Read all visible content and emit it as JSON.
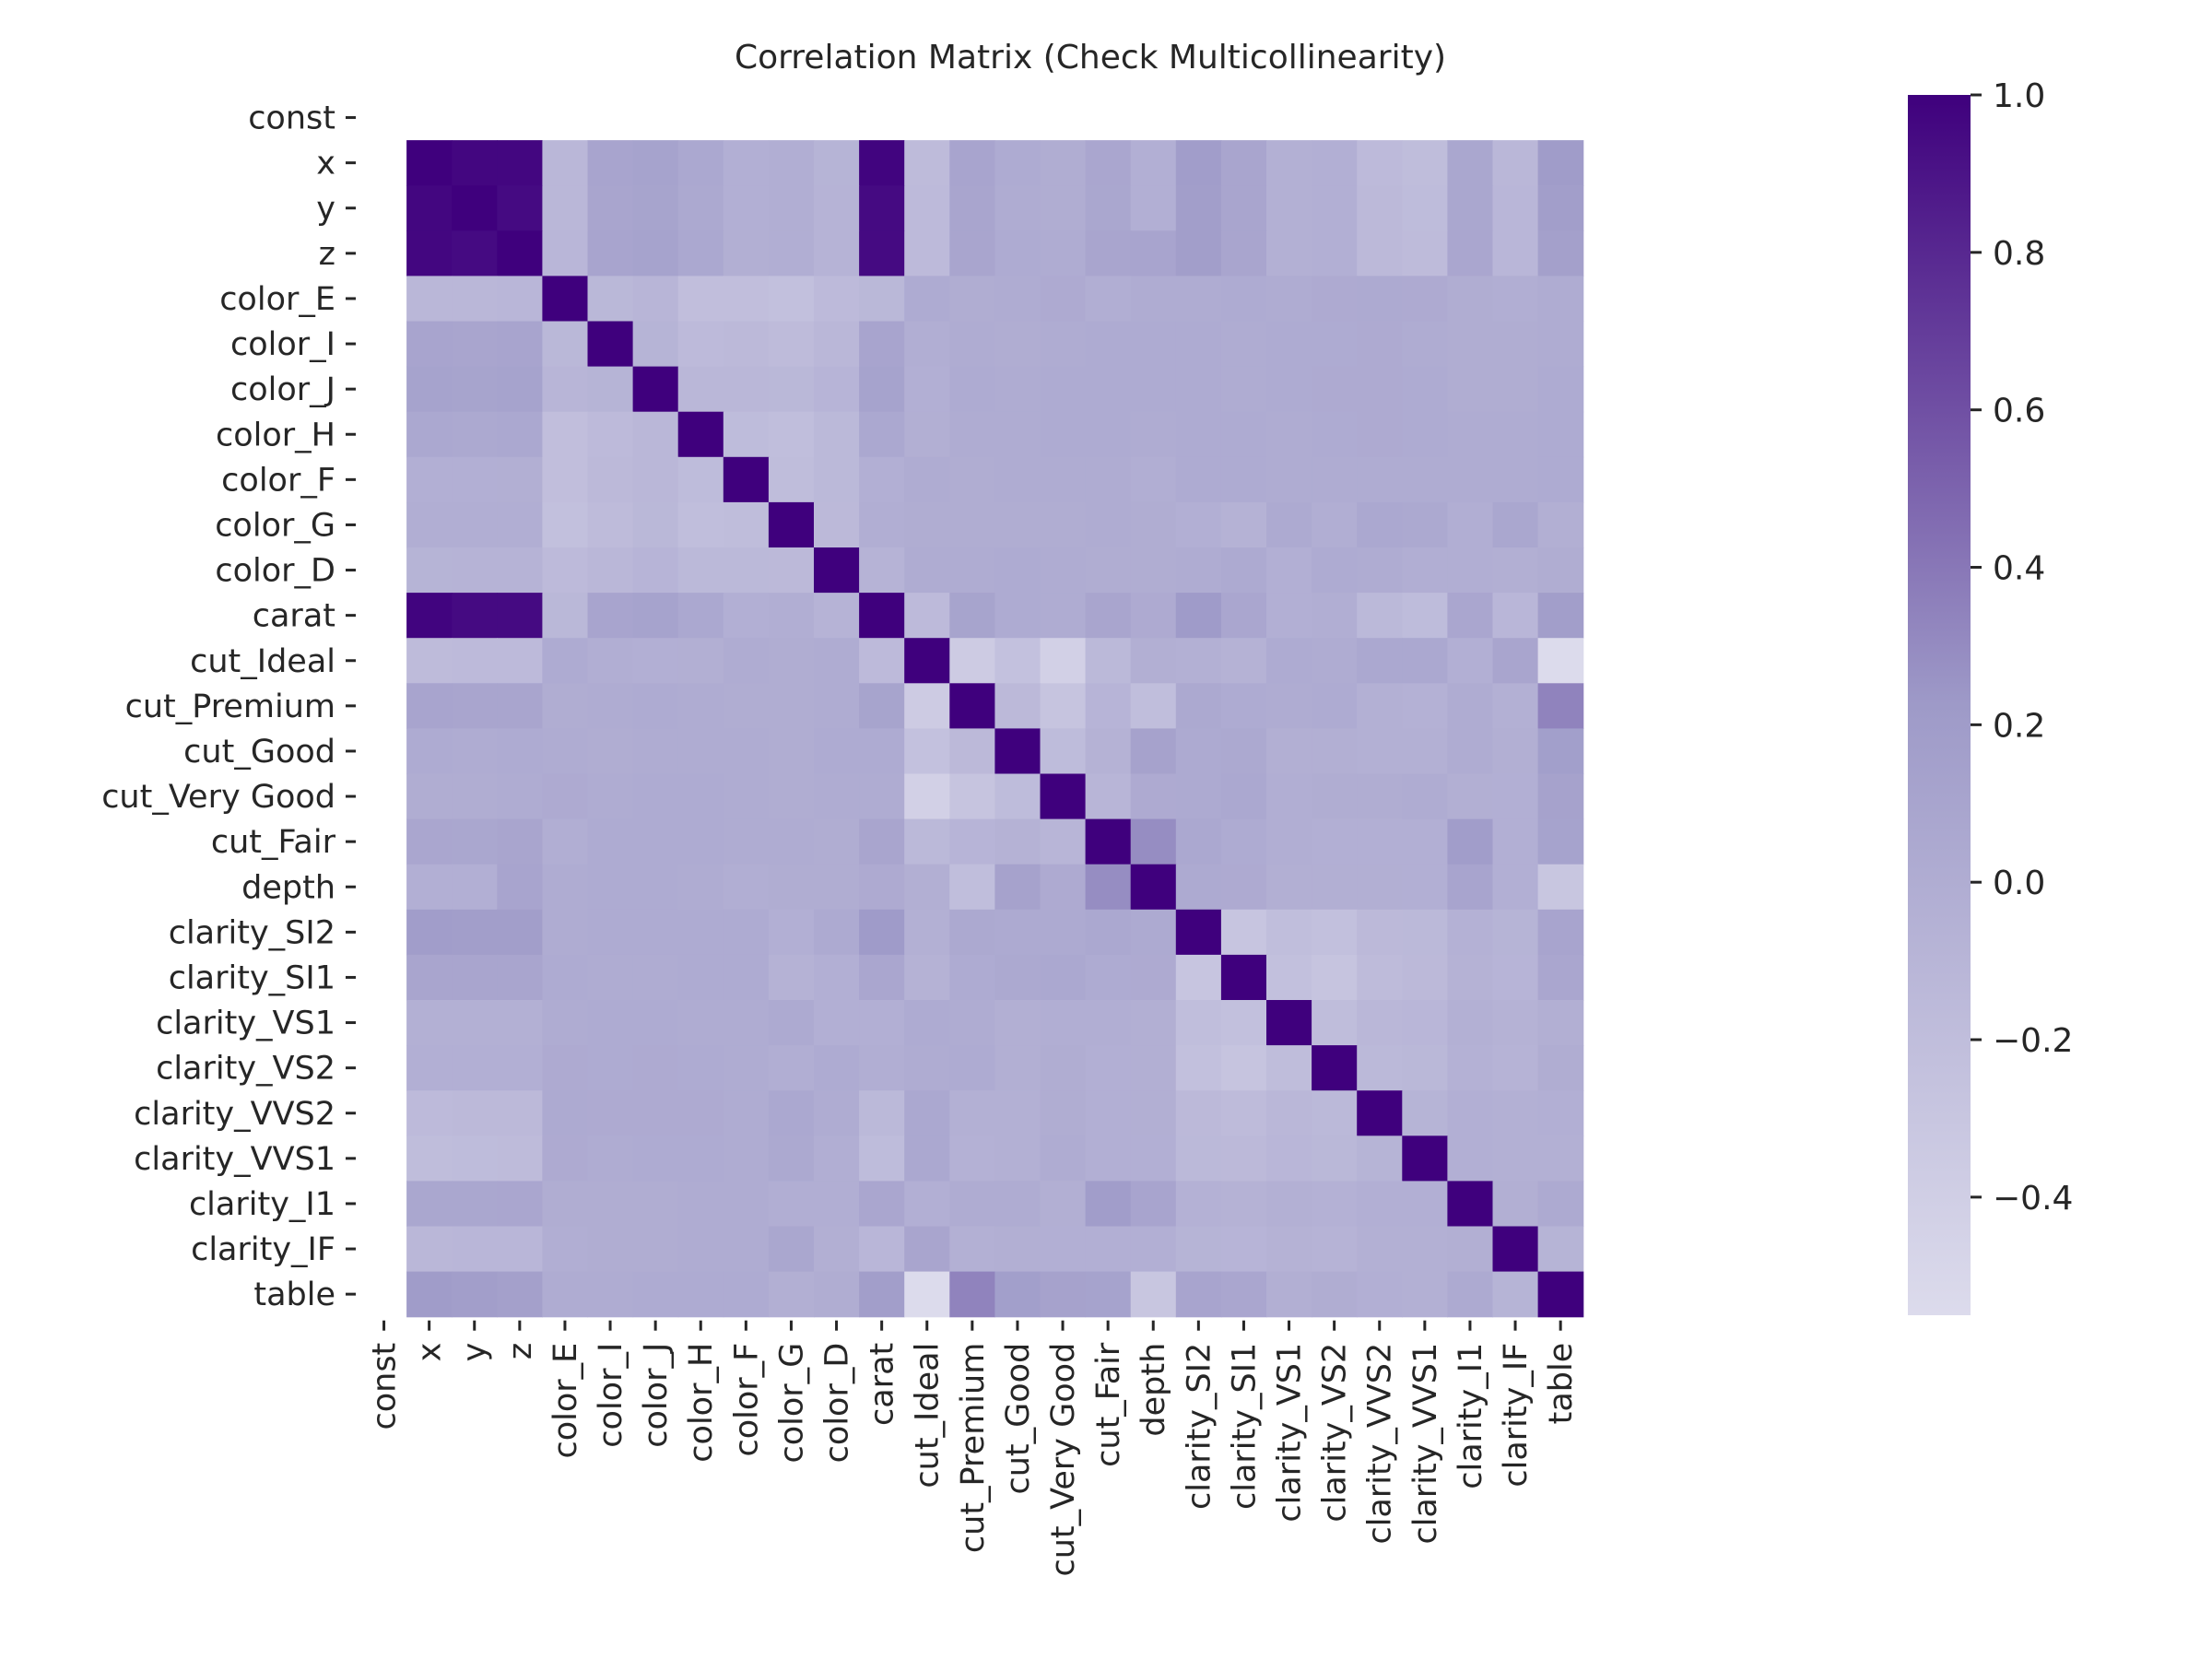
{
  "chart_data": {
    "type": "heatmap",
    "title": "Correlation Matrix (Check Multicollinearity)",
    "xlabel": "",
    "ylabel": "",
    "colormap": "Purples",
    "colors": {
      "low": "#dcdbec",
      "mid": "#9e9ac8",
      "high": "#3f007d"
    },
    "missing_rows": [
      "const"
    ],
    "labels": [
      "const",
      "x",
      "y",
      "z",
      "color_E",
      "color_I",
      "color_J",
      "color_H",
      "color_F",
      "color_G",
      "color_D",
      "carat",
      "cut_Ideal",
      "cut_Premium",
      "cut_Good",
      "cut_Very Good",
      "cut_Fair",
      "depth",
      "clarity_SI2",
      "clarity_SI1",
      "clarity_VS1",
      "clarity_VS2",
      "clarity_VVS2",
      "clarity_VVS1",
      "clarity_I1",
      "clarity_IF",
      "table"
    ],
    "matrix_labels": [
      "x",
      "y",
      "z",
      "color_E",
      "color_I",
      "color_J",
      "color_H",
      "color_F",
      "color_G",
      "color_D",
      "carat",
      "cut_Ideal",
      "cut_Premium",
      "cut_Good",
      "cut_Very Good",
      "cut_Fair",
      "depth",
      "clarity_SI2",
      "clarity_SI1",
      "clarity_VS1",
      "clarity_VS2",
      "clarity_VVS2",
      "clarity_VVS1",
      "clarity_I1",
      "clarity_IF",
      "table"
    ],
    "matrix": [
      [
        1.0,
        0.97,
        0.97,
        -0.12,
        0.1,
        0.12,
        0.06,
        -0.03,
        -0.01,
        -0.08,
        0.98,
        -0.17,
        0.1,
        0.02,
        0.0,
        0.08,
        -0.03,
        0.19,
        0.09,
        -0.04,
        -0.03,
        -0.16,
        -0.19,
        0.07,
        -0.12,
        0.2
      ],
      [
        0.97,
        1.0,
        0.95,
        -0.12,
        0.09,
        0.11,
        0.05,
        -0.03,
        -0.01,
        -0.07,
        0.95,
        -0.16,
        0.09,
        0.01,
        0.0,
        0.07,
        -0.03,
        0.18,
        0.09,
        -0.04,
        -0.03,
        -0.15,
        -0.18,
        0.07,
        -0.11,
        0.18
      ],
      [
        0.97,
        0.95,
        1.0,
        -0.11,
        0.1,
        0.12,
        0.06,
        -0.02,
        -0.01,
        -0.07,
        0.95,
        -0.16,
        0.09,
        0.02,
        0.01,
        0.09,
        0.1,
        0.18,
        0.09,
        -0.04,
        -0.03,
        -0.15,
        -0.17,
        0.08,
        -0.11,
        0.15
      ],
      [
        -0.12,
        -0.12,
        -0.11,
        1.0,
        -0.13,
        -0.1,
        -0.21,
        -0.21,
        -0.23,
        -0.16,
        -0.13,
        0.02,
        0.0,
        0.01,
        0.03,
        -0.01,
        0.01,
        0.01,
        0.02,
        0.01,
        0.03,
        0.04,
        0.03,
        0.0,
        -0.01,
        0.01
      ],
      [
        0.1,
        0.09,
        0.1,
        -0.13,
        1.0,
        -0.08,
        -0.16,
        -0.15,
        -0.17,
        -0.12,
        0.1,
        -0.01,
        0.01,
        0.0,
        0.01,
        0.02,
        0.02,
        0.02,
        0.01,
        0.02,
        0.02,
        0.03,
        0.01,
        0.0,
        0.0,
        0.01
      ],
      [
        0.12,
        0.11,
        0.12,
        -0.1,
        -0.08,
        1.0,
        -0.12,
        -0.12,
        -0.13,
        -0.09,
        0.12,
        -0.03,
        0.02,
        0.01,
        0.02,
        0.02,
        0.02,
        0.02,
        0.01,
        0.02,
        0.03,
        0.03,
        0.02,
        0.0,
        0.0,
        0.02
      ],
      [
        0.06,
        0.05,
        0.06,
        -0.21,
        -0.16,
        -0.12,
        1.0,
        -0.18,
        -0.2,
        -0.14,
        0.06,
        -0.02,
        0.01,
        0.01,
        0.02,
        0.02,
        0.01,
        0.02,
        0.02,
        0.01,
        0.02,
        0.03,
        0.02,
        0.01,
        0.01,
        0.02
      ],
      [
        -0.03,
        -0.03,
        -0.02,
        -0.21,
        -0.15,
        -0.12,
        -0.18,
        1.0,
        -0.19,
        -0.14,
        -0.03,
        0.01,
        0.0,
        0.01,
        0.01,
        0.01,
        -0.01,
        0.02,
        0.02,
        0.01,
        0.01,
        0.01,
        0.01,
        0.01,
        0.01,
        0.02
      ],
      [
        -0.01,
        -0.01,
        -0.01,
        -0.23,
        -0.17,
        -0.13,
        -0.2,
        -0.19,
        1.0,
        -0.15,
        -0.01,
        0.0,
        0.0,
        0.0,
        0.0,
        0.01,
        0.0,
        -0.03,
        -0.06,
        0.04,
        -0.01,
        0.06,
        0.05,
        -0.01,
        0.07,
        -0.02
      ],
      [
        -0.08,
        -0.07,
        -0.07,
        -0.16,
        -0.12,
        -0.09,
        -0.14,
        -0.14,
        -0.15,
        1.0,
        -0.07,
        0.01,
        0.01,
        0.02,
        0.01,
        0.0,
        0.0,
        0.01,
        0.04,
        -0.03,
        0.02,
        0.01,
        -0.01,
        -0.01,
        -0.02,
        0.0
      ],
      [
        0.98,
        0.95,
        0.95,
        -0.13,
        0.1,
        0.12,
        0.06,
        -0.03,
        -0.01,
        -0.07,
        1.0,
        -0.16,
        0.11,
        0.02,
        0.01,
        0.09,
        0.03,
        0.21,
        0.08,
        -0.03,
        -0.01,
        -0.14,
        -0.18,
        0.08,
        -0.11,
        0.18
      ],
      [
        -0.17,
        -0.16,
        -0.16,
        0.02,
        -0.01,
        -0.03,
        -0.02,
        0.01,
        0.0,
        0.01,
        -0.16,
        1.0,
        -0.36,
        -0.24,
        -0.42,
        -0.14,
        -0.02,
        -0.04,
        -0.06,
        0.02,
        0.01,
        0.06,
        0.06,
        -0.03,
        0.09,
        -0.55
      ],
      [
        0.1,
        0.09,
        0.09,
        0.0,
        0.01,
        0.02,
        0.01,
        0.0,
        0.0,
        0.01,
        0.11,
        -0.36,
        1.0,
        -0.15,
        -0.27,
        -0.09,
        -0.2,
        0.05,
        0.02,
        0.01,
        0.02,
        -0.04,
        -0.05,
        0.01,
        -0.04,
        0.34
      ],
      [
        0.02,
        0.01,
        0.02,
        0.01,
        0.0,
        0.01,
        0.01,
        0.01,
        0.0,
        0.02,
        0.02,
        -0.24,
        -0.15,
        1.0,
        -0.18,
        -0.06,
        0.13,
        0.04,
        0.05,
        -0.02,
        -0.02,
        -0.04,
        -0.04,
        0.01,
        -0.02,
        0.17
      ],
      [
        0.0,
        0.0,
        0.01,
        0.03,
        0.01,
        0.02,
        0.02,
        0.01,
        0.0,
        0.01,
        0.01,
        -0.42,
        -0.27,
        -0.18,
        1.0,
        -0.1,
        0.03,
        0.04,
        0.06,
        -0.01,
        0.0,
        0.0,
        0.01,
        -0.02,
        -0.03,
        0.13
      ],
      [
        0.08,
        0.07,
        0.09,
        -0.01,
        0.02,
        0.02,
        0.02,
        0.01,
        0.01,
        0.0,
        0.09,
        -0.14,
        -0.09,
        -0.06,
        -0.1,
        1.0,
        0.29,
        0.06,
        0.02,
        -0.01,
        -0.03,
        -0.03,
        -0.03,
        0.19,
        -0.03,
        0.12
      ],
      [
        -0.03,
        -0.03,
        0.1,
        0.01,
        0.02,
        0.02,
        0.01,
        -0.01,
        0.0,
        0.0,
        0.03,
        -0.02,
        -0.2,
        0.13,
        0.03,
        0.29,
        1.0,
        0.04,
        0.03,
        -0.02,
        -0.02,
        -0.02,
        -0.03,
        0.1,
        -0.03,
        -0.3
      ],
      [
        0.19,
        0.18,
        0.18,
        0.01,
        0.02,
        0.02,
        0.02,
        0.02,
        -0.03,
        0.04,
        0.21,
        -0.04,
        0.05,
        0.04,
        0.04,
        0.06,
        0.04,
        1.0,
        -0.29,
        -0.2,
        -0.23,
        -0.15,
        -0.14,
        -0.05,
        -0.08,
        0.1
      ],
      [
        0.09,
        0.09,
        0.09,
        0.02,
        0.01,
        0.01,
        0.02,
        0.02,
        -0.06,
        -0.03,
        0.08,
        -0.06,
        0.02,
        0.05,
        0.06,
        0.02,
        0.03,
        -0.29,
        1.0,
        -0.23,
        -0.27,
        -0.17,
        -0.15,
        -0.06,
        -0.09,
        0.08
      ],
      [
        -0.04,
        -0.04,
        -0.04,
        0.01,
        0.02,
        0.02,
        0.01,
        0.01,
        0.04,
        -0.03,
        -0.03,
        0.02,
        0.01,
        -0.02,
        -0.01,
        -0.01,
        -0.02,
        -0.2,
        -0.23,
        1.0,
        -0.19,
        -0.12,
        -0.11,
        -0.04,
        -0.06,
        -0.02
      ],
      [
        -0.03,
        -0.03,
        -0.03,
        0.03,
        0.02,
        0.03,
        0.02,
        0.01,
        -0.01,
        0.02,
        -0.01,
        0.01,
        0.02,
        -0.02,
        0.0,
        -0.03,
        -0.02,
        -0.23,
        -0.27,
        -0.19,
        1.0,
        -0.14,
        -0.13,
        -0.05,
        -0.07,
        0.0
      ],
      [
        -0.16,
        -0.15,
        -0.15,
        0.04,
        0.03,
        0.03,
        0.03,
        0.01,
        0.06,
        0.01,
        -0.14,
        0.06,
        -0.04,
        -0.04,
        0.0,
        -0.03,
        -0.02,
        -0.15,
        -0.17,
        -0.12,
        -0.14,
        1.0,
        -0.08,
        -0.03,
        -0.04,
        -0.03
      ],
      [
        -0.19,
        -0.18,
        -0.17,
        0.03,
        0.01,
        0.02,
        0.02,
        0.01,
        0.05,
        -0.01,
        -0.18,
        0.06,
        -0.05,
        -0.04,
        0.01,
        -0.03,
        -0.03,
        -0.14,
        -0.15,
        -0.11,
        -0.13,
        -0.08,
        1.0,
        -0.03,
        -0.04,
        -0.04
      ],
      [
        0.07,
        0.07,
        0.08,
        0.0,
        0.0,
        0.0,
        0.01,
        0.01,
        -0.01,
        -0.01,
        0.08,
        -0.03,
        0.01,
        0.01,
        -0.02,
        0.19,
        0.1,
        -0.05,
        -0.06,
        -0.04,
        -0.05,
        -0.03,
        -0.03,
        1.0,
        -0.02,
        0.04
      ],
      [
        -0.12,
        -0.11,
        -0.11,
        -0.01,
        0.0,
        0.0,
        0.01,
        0.01,
        0.07,
        -0.02,
        -0.11,
        0.09,
        -0.04,
        -0.02,
        -0.03,
        -0.03,
        -0.03,
        -0.08,
        -0.09,
        -0.06,
        -0.07,
        -0.04,
        -0.04,
        -0.02,
        1.0,
        -0.08
      ],
      [
        0.2,
        0.18,
        0.15,
        0.01,
        0.01,
        0.02,
        0.02,
        0.02,
        -0.02,
        0.0,
        0.18,
        -0.55,
        0.34,
        0.17,
        0.13,
        0.12,
        -0.3,
        0.1,
        0.08,
        -0.02,
        0.0,
        -0.03,
        -0.04,
        0.04,
        -0.08,
        1.0
      ]
    ],
    "vmin": -0.55,
    "vmax": 1.0,
    "colorbar": {
      "ticks": [
        1.0,
        0.8,
        0.6,
        0.4,
        0.2,
        0.0,
        -0.2,
        -0.4
      ],
      "tick_labels": [
        "1.0",
        "0.8",
        "0.6",
        "0.4",
        "0.2",
        "0.0",
        "−0.2",
        "−0.4"
      ]
    }
  }
}
